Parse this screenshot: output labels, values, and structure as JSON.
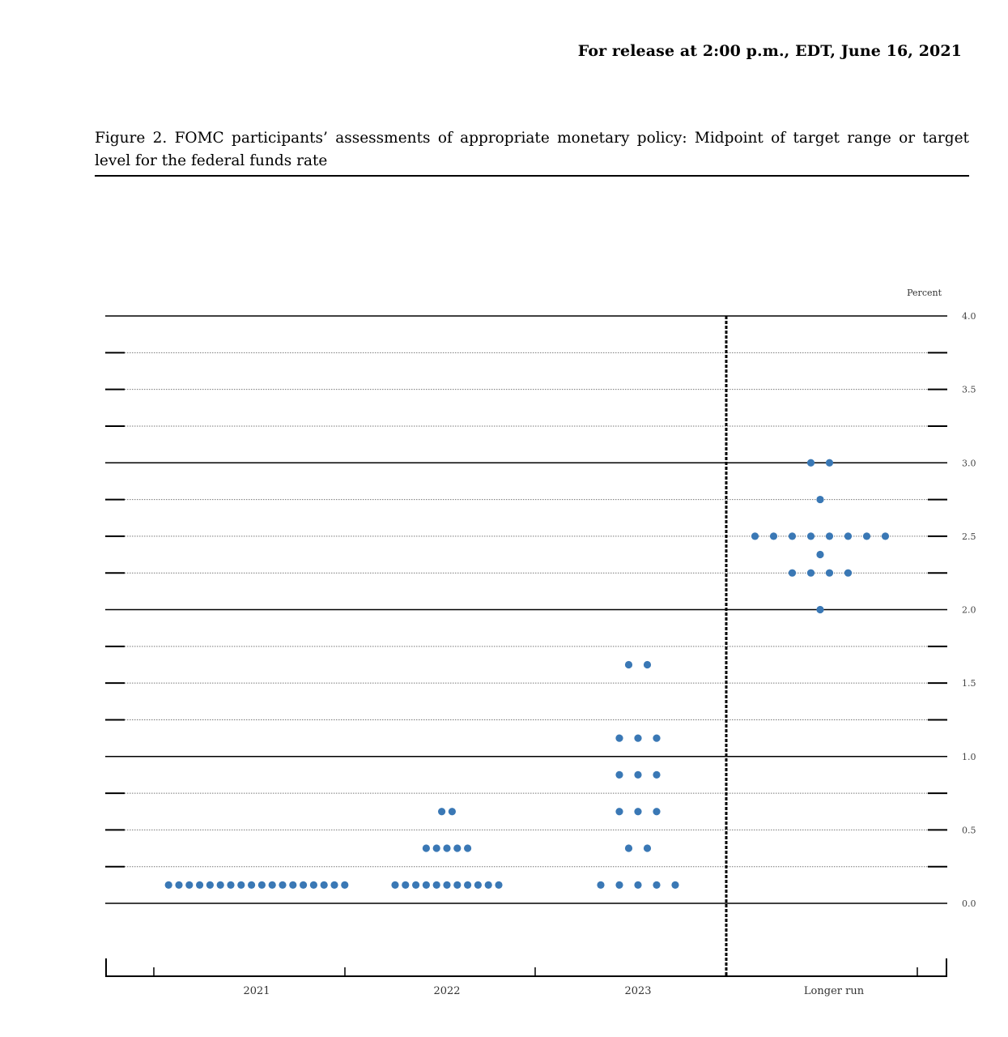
{
  "header": {
    "release": "For release at 2:00 p.m., EDT, June 16, 2021"
  },
  "figure": {
    "title": "Figure 2. FOMC participants’ assessments of appropriate monetary policy: Midpoint of target range or target level for the federal funds rate"
  },
  "chart_data": {
    "type": "scatter",
    "subtype": "dot-plot",
    "unit_label": "Percent",
    "ylim": [
      0.0,
      4.0
    ],
    "yticks": [
      "0.0",
      "0.5",
      "1.0",
      "1.5",
      "2.0",
      "2.5",
      "3.0",
      "3.5",
      "4.0"
    ],
    "categories": [
      "2021",
      "2022",
      "2023",
      "Longer run"
    ],
    "dot_color": "#3a78b5",
    "series": [
      {
        "category": "2021",
        "points": [
          {
            "y": 0.125,
            "count": 18
          }
        ]
      },
      {
        "category": "2022",
        "points": [
          {
            "y": 0.125,
            "count": 11
          },
          {
            "y": 0.375,
            "count": 5
          },
          {
            "y": 0.625,
            "count": 2
          }
        ]
      },
      {
        "category": "2023",
        "points": [
          {
            "y": 0.125,
            "count": 5
          },
          {
            "y": 0.375,
            "count": 2
          },
          {
            "y": 0.625,
            "count": 3
          },
          {
            "y": 0.875,
            "count": 3
          },
          {
            "y": 1.125,
            "count": 3
          },
          {
            "y": 1.625,
            "count": 2
          }
        ]
      },
      {
        "category": "Longer run",
        "points": [
          {
            "y": 2.0,
            "count": 1
          },
          {
            "y": 2.25,
            "count": 4
          },
          {
            "y": 2.375,
            "count": 1
          },
          {
            "y": 2.5,
            "count": 8
          },
          {
            "y": 2.75,
            "count": 1
          },
          {
            "y": 3.0,
            "count": 2
          }
        ]
      }
    ],
    "grid": true,
    "divider_before": "Longer run"
  }
}
